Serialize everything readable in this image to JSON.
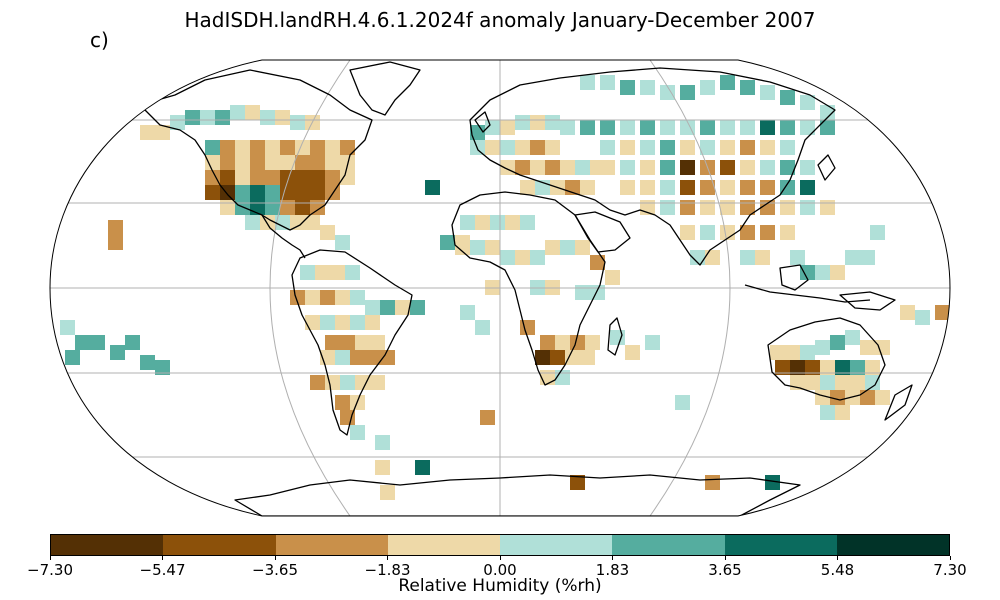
{
  "title": "HadISDH.landRH.4.6.1.2024f anomaly January-December 2007",
  "panel_label": "c)",
  "colorbar": {
    "label": "Relative Humidity (%rh)",
    "ticks": [
      "−7.30",
      "−5.47",
      "−3.65",
      "−1.83",
      "0.00",
      "1.83",
      "3.65",
      "5.48",
      "7.30"
    ],
    "colors": [
      "#543005",
      "#8c510a",
      "#c9904a",
      "#eed9a8",
      "#b0e0d8",
      "#55ad9f",
      "#0b6b5e",
      "#013328"
    ]
  },
  "map": {
    "projection": "robinson",
    "gridline_color": "#b0b0b0"
  }
}
